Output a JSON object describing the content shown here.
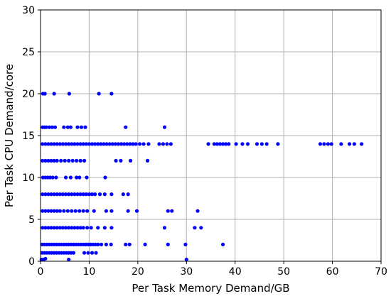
{
  "chart_data": {
    "type": "scatter",
    "title": "",
    "xlabel": "Per Task Memory Demand/GB",
    "ylabel": "Per Task CPU Demand/core",
    "xlim": [
      0,
      70
    ],
    "ylim": [
      0,
      30
    ],
    "xticks": [
      0,
      10,
      20,
      30,
      40,
      50,
      60,
      70
    ],
    "yticks": [
      0,
      5,
      10,
      15,
      20,
      25,
      30
    ],
    "xtick_labels": [
      "0",
      "10",
      "20",
      "30",
      "40",
      "50",
      "60",
      "70"
    ],
    "ytick_labels": [
      "0",
      "5",
      "10",
      "15",
      "20",
      "25",
      "30"
    ],
    "grid": true,
    "marker_color": "#0000ff",
    "series": [
      {
        "name": "",
        "points": [
          {
            "x": 0.5,
            "y": 20
          },
          {
            "x": 0.9,
            "y": 20
          },
          {
            "x": 2.8,
            "y": 20
          },
          {
            "x": 5.9,
            "y": 20
          },
          {
            "x": 12,
            "y": 20
          },
          {
            "x": 14.6,
            "y": 20
          },
          {
            "x": 0.4,
            "y": 16
          },
          {
            "x": 0.8,
            "y": 16
          },
          {
            "x": 1.2,
            "y": 16
          },
          {
            "x": 1.8,
            "y": 16
          },
          {
            "x": 2.4,
            "y": 16
          },
          {
            "x": 3,
            "y": 16
          },
          {
            "x": 4.8,
            "y": 16
          },
          {
            "x": 5.6,
            "y": 16
          },
          {
            "x": 6.2,
            "y": 16
          },
          {
            "x": 7.6,
            "y": 16
          },
          {
            "x": 8.4,
            "y": 16
          },
          {
            "x": 9.2,
            "y": 16
          },
          {
            "x": 17.5,
            "y": 16
          },
          {
            "x": 25.5,
            "y": 16
          },
          {
            "x": 0.4,
            "y": 14
          },
          {
            "x": 1,
            "y": 14
          },
          {
            "x": 1.6,
            "y": 14
          },
          {
            "x": 2.2,
            "y": 14
          },
          {
            "x": 2.8,
            "y": 14
          },
          {
            "x": 3.4,
            "y": 14
          },
          {
            "x": 4,
            "y": 14
          },
          {
            "x": 4.6,
            "y": 14
          },
          {
            "x": 5.2,
            "y": 14
          },
          {
            "x": 5.8,
            "y": 14
          },
          {
            "x": 6.4,
            "y": 14
          },
          {
            "x": 7,
            "y": 14
          },
          {
            "x": 7.6,
            "y": 14
          },
          {
            "x": 8.2,
            "y": 14
          },
          {
            "x": 8.8,
            "y": 14
          },
          {
            "x": 9.4,
            "y": 14
          },
          {
            "x": 10,
            "y": 14
          },
          {
            "x": 10.6,
            "y": 14
          },
          {
            "x": 11.2,
            "y": 14
          },
          {
            "x": 11.8,
            "y": 14
          },
          {
            "x": 12.4,
            "y": 14
          },
          {
            "x": 13,
            "y": 14
          },
          {
            "x": 13.6,
            "y": 14
          },
          {
            "x": 14.2,
            "y": 14
          },
          {
            "x": 14.8,
            "y": 14
          },
          {
            "x": 15.4,
            "y": 14
          },
          {
            "x": 16,
            "y": 14
          },
          {
            "x": 16.6,
            "y": 14
          },
          {
            "x": 17.2,
            "y": 14
          },
          {
            "x": 17.8,
            "y": 14
          },
          {
            "x": 18.4,
            "y": 14
          },
          {
            "x": 19,
            "y": 14
          },
          {
            "x": 19.6,
            "y": 14
          },
          {
            "x": 20.4,
            "y": 14
          },
          {
            "x": 21.2,
            "y": 14
          },
          {
            "x": 22.2,
            "y": 14
          },
          {
            "x": 24.4,
            "y": 14
          },
          {
            "x": 25.2,
            "y": 14
          },
          {
            "x": 26,
            "y": 14
          },
          {
            "x": 26.8,
            "y": 14
          },
          {
            "x": 34.5,
            "y": 14
          },
          {
            "x": 35.7,
            "y": 14
          },
          {
            "x": 36.3,
            "y": 14
          },
          {
            "x": 36.9,
            "y": 14
          },
          {
            "x": 37.5,
            "y": 14
          },
          {
            "x": 38.1,
            "y": 14
          },
          {
            "x": 38.7,
            "y": 14
          },
          {
            "x": 40.2,
            "y": 14
          },
          {
            "x": 41.5,
            "y": 14
          },
          {
            "x": 42.6,
            "y": 14
          },
          {
            "x": 44.5,
            "y": 14
          },
          {
            "x": 45.5,
            "y": 14
          },
          {
            "x": 46.5,
            "y": 14
          },
          {
            "x": 48.8,
            "y": 14
          },
          {
            "x": 57.5,
            "y": 14
          },
          {
            "x": 58.3,
            "y": 14
          },
          {
            "x": 59.1,
            "y": 14
          },
          {
            "x": 59.8,
            "y": 14
          },
          {
            "x": 61.8,
            "y": 14
          },
          {
            "x": 63.5,
            "y": 14
          },
          {
            "x": 64.5,
            "y": 14
          },
          {
            "x": 66,
            "y": 14
          },
          {
            "x": 0.4,
            "y": 12
          },
          {
            "x": 1,
            "y": 12
          },
          {
            "x": 1.6,
            "y": 12
          },
          {
            "x": 2.2,
            "y": 12
          },
          {
            "x": 2.8,
            "y": 12
          },
          {
            "x": 3.4,
            "y": 12
          },
          {
            "x": 4.2,
            "y": 12
          },
          {
            "x": 5,
            "y": 12
          },
          {
            "x": 5.8,
            "y": 12
          },
          {
            "x": 6.6,
            "y": 12
          },
          {
            "x": 7.4,
            "y": 12
          },
          {
            "x": 8.2,
            "y": 12
          },
          {
            "x": 9,
            "y": 12
          },
          {
            "x": 15.5,
            "y": 12
          },
          {
            "x": 16.5,
            "y": 12
          },
          {
            "x": 18.5,
            "y": 12
          },
          {
            "x": 22,
            "y": 12
          },
          {
            "x": 0.5,
            "y": 10
          },
          {
            "x": 1,
            "y": 10
          },
          {
            "x": 1.5,
            "y": 10
          },
          {
            "x": 2,
            "y": 10
          },
          {
            "x": 2.5,
            "y": 10
          },
          {
            "x": 3.2,
            "y": 10
          },
          {
            "x": 5.2,
            "y": 10
          },
          {
            "x": 6.2,
            "y": 10
          },
          {
            "x": 7.4,
            "y": 10
          },
          {
            "x": 8,
            "y": 10
          },
          {
            "x": 9.5,
            "y": 10
          },
          {
            "x": 13.3,
            "y": 10
          },
          {
            "x": 0.4,
            "y": 8
          },
          {
            "x": 1,
            "y": 8
          },
          {
            "x": 1.6,
            "y": 8
          },
          {
            "x": 2.2,
            "y": 8
          },
          {
            "x": 2.8,
            "y": 8
          },
          {
            "x": 3.4,
            "y": 8
          },
          {
            "x": 4,
            "y": 8
          },
          {
            "x": 4.6,
            "y": 8
          },
          {
            "x": 5.2,
            "y": 8
          },
          {
            "x": 5.8,
            "y": 8
          },
          {
            "x": 6.4,
            "y": 8
          },
          {
            "x": 7,
            "y": 8
          },
          {
            "x": 7.6,
            "y": 8
          },
          {
            "x": 8.2,
            "y": 8
          },
          {
            "x": 8.8,
            "y": 8
          },
          {
            "x": 9.4,
            "y": 8
          },
          {
            "x": 10,
            "y": 8
          },
          {
            "x": 10.6,
            "y": 8
          },
          {
            "x": 11.2,
            "y": 8
          },
          {
            "x": 12.2,
            "y": 8
          },
          {
            "x": 13.2,
            "y": 8
          },
          {
            "x": 14.6,
            "y": 8
          },
          {
            "x": 17,
            "y": 8
          },
          {
            "x": 18,
            "y": 8
          },
          {
            "x": 0.4,
            "y": 6
          },
          {
            "x": 1,
            "y": 6
          },
          {
            "x": 1.6,
            "y": 6
          },
          {
            "x": 2.2,
            "y": 6
          },
          {
            "x": 2.8,
            "y": 6
          },
          {
            "x": 3.4,
            "y": 6
          },
          {
            "x": 4,
            "y": 6
          },
          {
            "x": 4.8,
            "y": 6
          },
          {
            "x": 5.6,
            "y": 6
          },
          {
            "x": 6.4,
            "y": 6
          },
          {
            "x": 7.2,
            "y": 6
          },
          {
            "x": 8,
            "y": 6
          },
          {
            "x": 8.8,
            "y": 6
          },
          {
            "x": 9.6,
            "y": 6
          },
          {
            "x": 11,
            "y": 6
          },
          {
            "x": 13.5,
            "y": 6
          },
          {
            "x": 14.6,
            "y": 6
          },
          {
            "x": 18,
            "y": 6
          },
          {
            "x": 19.8,
            "y": 6
          },
          {
            "x": 26.2,
            "y": 6
          },
          {
            "x": 27,
            "y": 6
          },
          {
            "x": 32.3,
            "y": 6
          },
          {
            "x": 0.4,
            "y": 4
          },
          {
            "x": 1,
            "y": 4
          },
          {
            "x": 1.6,
            "y": 4
          },
          {
            "x": 2.2,
            "y": 4
          },
          {
            "x": 2.8,
            "y": 4
          },
          {
            "x": 3.4,
            "y": 4
          },
          {
            "x": 4,
            "y": 4
          },
          {
            "x": 4.6,
            "y": 4
          },
          {
            "x": 5.2,
            "y": 4
          },
          {
            "x": 5.8,
            "y": 4
          },
          {
            "x": 6.4,
            "y": 4
          },
          {
            "x": 7,
            "y": 4
          },
          {
            "x": 7.6,
            "y": 4
          },
          {
            "x": 8.2,
            "y": 4
          },
          {
            "x": 8.8,
            "y": 4
          },
          {
            "x": 9.6,
            "y": 4
          },
          {
            "x": 10.4,
            "y": 4
          },
          {
            "x": 11.8,
            "y": 4
          },
          {
            "x": 13.2,
            "y": 4
          },
          {
            "x": 14.6,
            "y": 4
          },
          {
            "x": 25.5,
            "y": 4
          },
          {
            "x": 31.7,
            "y": 4
          },
          {
            "x": 33,
            "y": 4
          },
          {
            "x": 0.3,
            "y": 2
          },
          {
            "x": 0.8,
            "y": 2
          },
          {
            "x": 1.3,
            "y": 2
          },
          {
            "x": 1.8,
            "y": 2
          },
          {
            "x": 2.3,
            "y": 2
          },
          {
            "x": 2.8,
            "y": 2
          },
          {
            "x": 3.3,
            "y": 2
          },
          {
            "x": 3.8,
            "y": 2
          },
          {
            "x": 4.3,
            "y": 2
          },
          {
            "x": 4.8,
            "y": 2
          },
          {
            "x": 5.3,
            "y": 2
          },
          {
            "x": 5.8,
            "y": 2
          },
          {
            "x": 6.3,
            "y": 2
          },
          {
            "x": 6.8,
            "y": 2
          },
          {
            "x": 7.3,
            "y": 2
          },
          {
            "x": 7.8,
            "y": 2
          },
          {
            "x": 8.3,
            "y": 2
          },
          {
            "x": 8.8,
            "y": 2
          },
          {
            "x": 9.3,
            "y": 2
          },
          {
            "x": 9.8,
            "y": 2
          },
          {
            "x": 10.3,
            "y": 2
          },
          {
            "x": 10.8,
            "y": 2
          },
          {
            "x": 11.3,
            "y": 2
          },
          {
            "x": 11.8,
            "y": 2
          },
          {
            "x": 12.5,
            "y": 2
          },
          {
            "x": 13.5,
            "y": 2
          },
          {
            "x": 14.5,
            "y": 2
          },
          {
            "x": 17.5,
            "y": 2
          },
          {
            "x": 18.3,
            "y": 2
          },
          {
            "x": 21.5,
            "y": 2
          },
          {
            "x": 26.2,
            "y": 2
          },
          {
            "x": 29.8,
            "y": 2
          },
          {
            "x": 37.5,
            "y": 2
          },
          {
            "x": 0.3,
            "y": 1
          },
          {
            "x": 0.8,
            "y": 1
          },
          {
            "x": 1.3,
            "y": 1
          },
          {
            "x": 1.8,
            "y": 1
          },
          {
            "x": 2.3,
            "y": 1
          },
          {
            "x": 2.8,
            "y": 1
          },
          {
            "x": 3.3,
            "y": 1
          },
          {
            "x": 3.8,
            "y": 1
          },
          {
            "x": 4.3,
            "y": 1
          },
          {
            "x": 4.8,
            "y": 1
          },
          {
            "x": 5.3,
            "y": 1
          },
          {
            "x": 5.8,
            "y": 1
          },
          {
            "x": 6.3,
            "y": 1
          },
          {
            "x": 6.8,
            "y": 1
          },
          {
            "x": 9,
            "y": 1
          },
          {
            "x": 9.8,
            "y": 1
          },
          {
            "x": 10.6,
            "y": 1
          },
          {
            "x": 11.4,
            "y": 1
          },
          {
            "x": 0.2,
            "y": 0.2
          },
          {
            "x": 0.6,
            "y": 0.2
          },
          {
            "x": 1,
            "y": 0.3
          },
          {
            "x": 5.8,
            "y": 0.2
          },
          {
            "x": 30,
            "y": 0.2
          }
        ]
      }
    ]
  }
}
